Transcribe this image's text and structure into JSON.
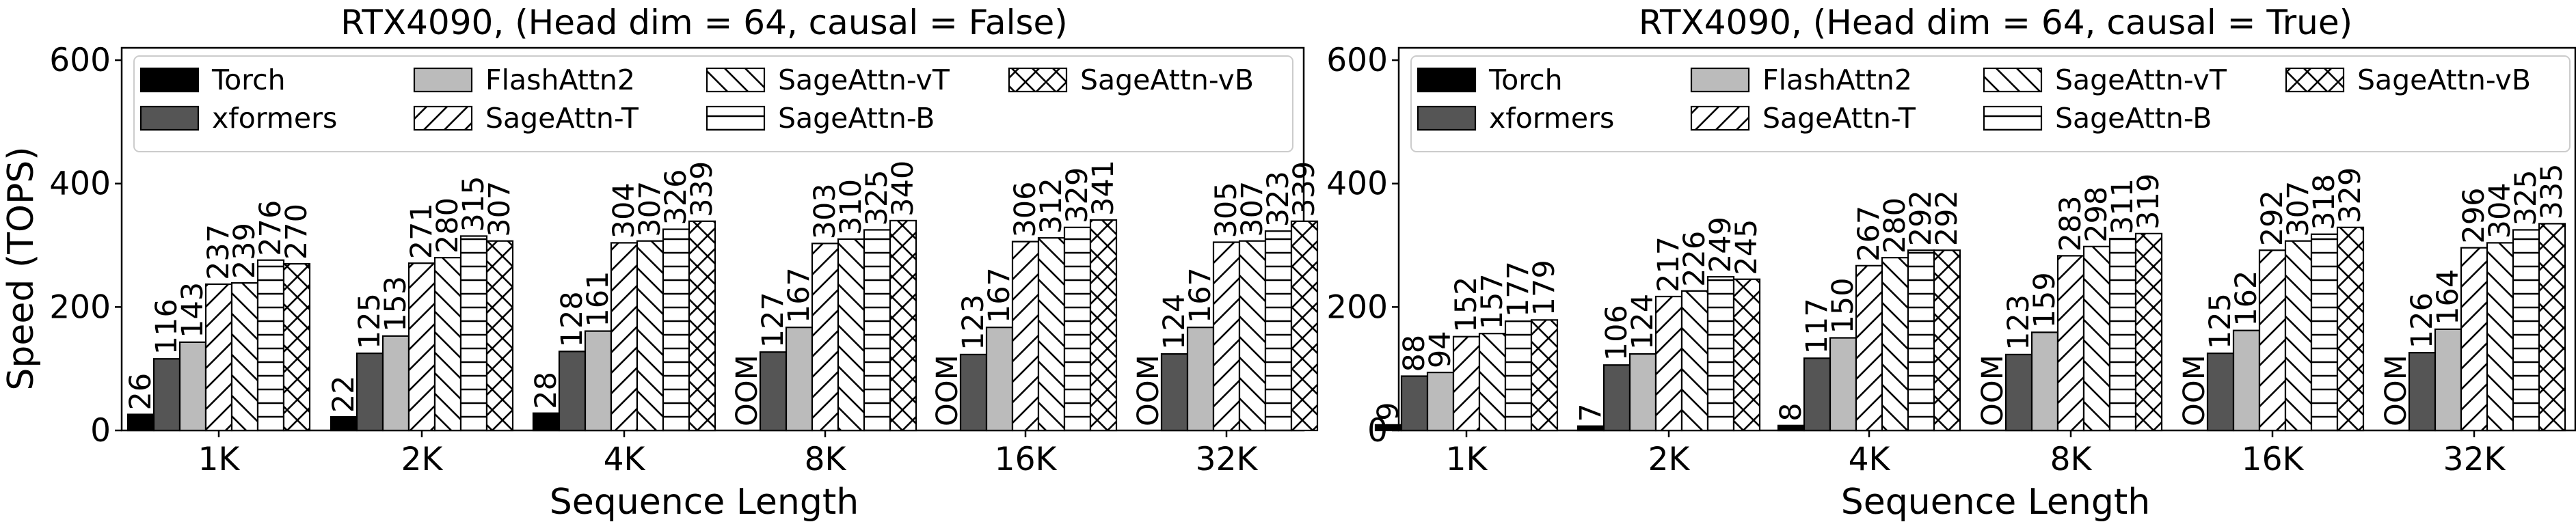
{
  "chart_data": [
    {
      "type": "bar",
      "title": "RTX4090, (Head dim = 64, causal = False)",
      "xlabel": "Sequence Length",
      "ylabel": "Speed (TOPS)",
      "ylim": [
        0,
        620
      ],
      "yticks": [
        "0",
        "200",
        "400",
        "600"
      ],
      "legend_position": "top",
      "categories": [
        "1K",
        "2K",
        "4K",
        "8K",
        "16K",
        "32K"
      ],
      "series": [
        {
          "name": "Torch",
          "values": [
            26,
            22,
            28,
            null,
            null,
            null
          ],
          "labels": [
            "26",
            "22",
            "28",
            "OOM",
            "OOM",
            "OOM"
          ],
          "fill": "#000000",
          "hatch": "none"
        },
        {
          "name": "xformers",
          "values": [
            116,
            125,
            128,
            127,
            123,
            124
          ],
          "labels": [
            "116",
            "125",
            "128",
            "127",
            "123",
            "124"
          ],
          "fill": "#555555",
          "hatch": "none"
        },
        {
          "name": "FlashAttn2",
          "values": [
            143,
            153,
            161,
            167,
            167,
            167
          ],
          "labels": [
            "143",
            "153",
            "161",
            "167",
            "167",
            "167"
          ],
          "fill": "#bbbbbb",
          "hatch": "none"
        },
        {
          "name": "SageAttn-T",
          "values": [
            237,
            271,
            304,
            303,
            306,
            305
          ],
          "labels": [
            "237",
            "271",
            "304",
            "303",
            "306",
            "305"
          ],
          "fill": "#ffffff",
          "hatch": "fwd"
        },
        {
          "name": "SageAttn-vT",
          "values": [
            239,
            280,
            307,
            310,
            312,
            307
          ],
          "labels": [
            "239",
            "280",
            "307",
            "310",
            "312",
            "307"
          ],
          "fill": "#ffffff",
          "hatch": "back"
        },
        {
          "name": "SageAttn-B",
          "values": [
            276,
            315,
            326,
            325,
            329,
            323
          ],
          "labels": [
            "276",
            "315",
            "326",
            "325",
            "329",
            "323"
          ],
          "fill": "#ffffff",
          "hatch": "horiz"
        },
        {
          "name": "SageAttn-vB",
          "values": [
            270,
            307,
            339,
            340,
            341,
            339
          ],
          "labels": [
            "270",
            "307",
            "339",
            "340",
            "341",
            "339"
          ],
          "fill": "#ffffff",
          "hatch": "cross"
        }
      ]
    },
    {
      "type": "bar",
      "title": "RTX4090, (Head dim = 64, causal = True)",
      "xlabel": "Sequence Length",
      "ylabel": "",
      "ylim": [
        0,
        620
      ],
      "yticks": [
        "0",
        "200",
        "400",
        "600"
      ],
      "legend_position": "top",
      "categories": [
        "1K",
        "2K",
        "4K",
        "8K",
        "16K",
        "32K"
      ],
      "series": [
        {
          "name": "Torch",
          "values": [
            9,
            7,
            8,
            null,
            null,
            null
          ],
          "labels": [
            "9",
            "7",
            "8",
            "OOM",
            "OOM",
            "OOM"
          ],
          "fill": "#000000",
          "hatch": "none"
        },
        {
          "name": "xformers",
          "values": [
            88,
            106,
            117,
            123,
            125,
            126
          ],
          "labels": [
            "88",
            "106",
            "117",
            "123",
            "125",
            "126"
          ],
          "fill": "#555555",
          "hatch": "none"
        },
        {
          "name": "FlashAttn2",
          "values": [
            94,
            124,
            150,
            159,
            162,
            164
          ],
          "labels": [
            "94",
            "124",
            "150",
            "159",
            "162",
            "164"
          ],
          "fill": "#bbbbbb",
          "hatch": "none"
        },
        {
          "name": "SageAttn-T",
          "values": [
            152,
            217,
            267,
            283,
            292,
            296
          ],
          "labels": [
            "152",
            "217",
            "267",
            "283",
            "292",
            "296"
          ],
          "fill": "#ffffff",
          "hatch": "fwd"
        },
        {
          "name": "SageAttn-vT",
          "values": [
            157,
            226,
            280,
            298,
            307,
            304
          ],
          "labels": [
            "157",
            "226",
            "280",
            "298",
            "307",
            "304"
          ],
          "fill": "#ffffff",
          "hatch": "back"
        },
        {
          "name": "SageAttn-B",
          "values": [
            177,
            249,
            292,
            311,
            318,
            325
          ],
          "labels": [
            "177",
            "249",
            "292",
            "311",
            "318",
            "325"
          ],
          "fill": "#ffffff",
          "hatch": "horiz"
        },
        {
          "name": "SageAttn-vB",
          "values": [
            179,
            245,
            292,
            319,
            329,
            335
          ],
          "labels": [
            "179",
            "245",
            "292",
            "319",
            "329",
            "335"
          ],
          "fill": "#ffffff",
          "hatch": "cross"
        }
      ]
    }
  ]
}
